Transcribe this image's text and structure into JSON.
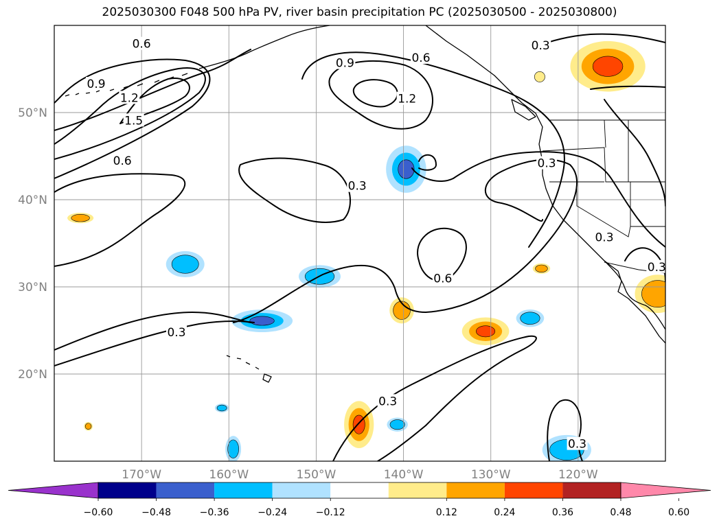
{
  "title": "2025030300 F048 500 hPa PV, river basin precipitation PC (2025030500 - 2025030800)",
  "lat_labels": [
    {
      "text": "50°N",
      "lat": 50
    },
    {
      "text": "40°N",
      "lat": 40
    },
    {
      "text": "30°N",
      "lat": 30
    },
    {
      "text": "20°N",
      "lat": 20
    }
  ],
  "lon_labels": [
    {
      "text": "170°W",
      "lon": -170
    },
    {
      "text": "160°W",
      "lon": -160
    },
    {
      "text": "150°W",
      "lon": -150
    },
    {
      "text": "140°W",
      "lon": -140
    },
    {
      "text": "130°W",
      "lon": -130
    },
    {
      "text": "120°W",
      "lon": -120
    }
  ],
  "map_extent": {
    "lon": [
      -180,
      -110
    ],
    "lat": [
      10,
      60
    ]
  },
  "contour_labels": [
    {
      "text": "0.6",
      "lon": -170.0,
      "lat": 57.9
    },
    {
      "text": "0.9",
      "lon": -175.2,
      "lat": 53.3
    },
    {
      "text": "1.2",
      "lon": -171.4,
      "lat": 51.7
    },
    {
      "text": "1.5",
      "lon": -170.9,
      "lat": 49.1
    },
    {
      "text": "0.6",
      "lon": -172.2,
      "lat": 44.5
    },
    {
      "text": "0.9",
      "lon": -146.7,
      "lat": 55.7
    },
    {
      "text": "0.6",
      "lon": -138.0,
      "lat": 56.3
    },
    {
      "text": "1.2",
      "lon": -139.6,
      "lat": 51.6
    },
    {
      "text": "0.3",
      "lon": -145.3,
      "lat": 41.6
    },
    {
      "text": "0.3",
      "lon": -124.3,
      "lat": 57.7
    },
    {
      "text": "0.3",
      "lon": -123.6,
      "lat": 44.2
    },
    {
      "text": "0.3",
      "lon": -117.0,
      "lat": 35.7
    },
    {
      "text": "0.3",
      "lon": -111.0,
      "lat": 32.3
    },
    {
      "text": "0.6",
      "lon": -135.5,
      "lat": 31.0
    },
    {
      "text": "0.3",
      "lon": -166.0,
      "lat": 24.8
    },
    {
      "text": "0.3",
      "lon": -141.8,
      "lat": 16.9
    },
    {
      "text": "0.3",
      "lon": -120.1,
      "lat": 12.0
    }
  ],
  "colorbar": {
    "colors": [
      "#9932cc",
      "#00008b",
      "#3a5fcd",
      "#00bfff",
      "#b0e2ff",
      "#ffffff",
      "#ffec8b",
      "#ffa500",
      "#ff4500",
      "#b22222",
      "#ff88aa"
    ],
    "ticks": [
      "−0.60",
      "−0.48",
      "−0.36",
      "−0.24",
      "−0.12",
      "0.12",
      "0.24",
      "0.36",
      "0.48",
      "0.60"
    ]
  },
  "precip_blobs": [
    {
      "id": "a",
      "lon": -139.7,
      "lat": 43.5,
      "rx": 2.3,
      "ry": 2.7,
      "levels": [
        "#b0e2ff",
        "#00bfff",
        "#3a5fcd"
      ]
    },
    {
      "id": "b",
      "lon": -165.0,
      "lat": 32.6,
      "rx": 2.2,
      "ry": 1.5,
      "levels": [
        "#b0e2ff",
        "#00bfff"
      ]
    },
    {
      "id": "c",
      "lon": -149.6,
      "lat": 31.2,
      "rx": 2.4,
      "ry": 1.3,
      "levels": [
        "#b0e2ff",
        "#00bfff"
      ]
    },
    {
      "id": "d",
      "lon": -156.2,
      "lat": 26.1,
      "rx": 3.5,
      "ry": 1.3,
      "levels": [
        "#b0e2ff",
        "#00bfff",
        "#3a5fcd"
      ]
    },
    {
      "id": "e",
      "lon": -125.5,
      "lat": 26.4,
      "rx": 1.6,
      "ry": 1.0,
      "levels": [
        "#b0e2ff",
        "#00bfff"
      ]
    },
    {
      "id": "f",
      "lon": -140.7,
      "lat": 14.2,
      "rx": 1.2,
      "ry": 0.8,
      "levels": [
        "#b0e2ff",
        "#00bfff"
      ]
    },
    {
      "id": "g",
      "lon": -159.5,
      "lat": 11.4,
      "rx": 0.9,
      "ry": 1.5,
      "levels": [
        "#b0e2ff",
        "#00bfff"
      ]
    },
    {
      "id": "h",
      "lon": -121.3,
      "lat": 11.3,
      "rx": 2.8,
      "ry": 1.7,
      "levels": [
        "#b0e2ff",
        "#00bfff"
      ]
    },
    {
      "id": "i",
      "lon": -160.8,
      "lat": 16.1,
      "rx": 0.8,
      "ry": 0.5,
      "levels": [
        "#b0e2ff",
        "#00bfff"
      ]
    },
    {
      "id": "j",
      "lon": -116.6,
      "lat": 55.3,
      "rx": 4.3,
      "ry": 2.9,
      "levels": [
        "#ffec8b",
        "#ffa500",
        "#ff4500"
      ]
    },
    {
      "id": "k",
      "lon": -110.9,
      "lat": 29.2,
      "rx": 2.6,
      "ry": 2.2,
      "levels": [
        "#ffec8b",
        "#ffa500"
      ]
    },
    {
      "id": "l",
      "lon": -130.6,
      "lat": 24.9,
      "rx": 2.7,
      "ry": 1.6,
      "levels": [
        "#ffec8b",
        "#ffa500",
        "#ff4500"
      ]
    },
    {
      "id": "m",
      "lon": -140.2,
      "lat": 27.3,
      "rx": 1.4,
      "ry": 1.5,
      "levels": [
        "#ffec8b",
        "#ffa500"
      ]
    },
    {
      "id": "n",
      "lon": -145.1,
      "lat": 14.2,
      "rx": 1.7,
      "ry": 2.7,
      "levels": [
        "#ffec8b",
        "#ffa500",
        "#ff4500"
      ]
    },
    {
      "id": "o",
      "lon": -177.0,
      "lat": 37.9,
      "rx": 1.5,
      "ry": 0.6,
      "levels": [
        "#ffec8b",
        "#ffa500"
      ]
    },
    {
      "id": "p",
      "lon": -124.2,
      "lat": 32.1,
      "rx": 1.0,
      "ry": 0.6,
      "levels": [
        "#ffec8b",
        "#ffa500"
      ]
    },
    {
      "id": "q",
      "lon": -124.4,
      "lat": 54.1,
      "rx": 0.6,
      "ry": 0.6,
      "levels": [
        "#ffec8b"
      ]
    },
    {
      "id": "r",
      "lon": -176.1,
      "lat": 14.0,
      "rx": 0.5,
      "ry": 0.5,
      "levels": [
        "#ffec8b",
        "#ffa500"
      ]
    }
  ]
}
